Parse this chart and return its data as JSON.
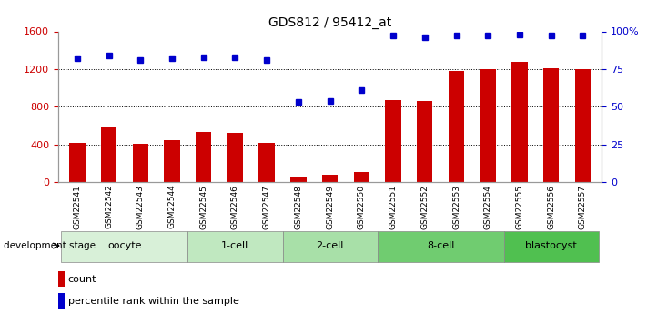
{
  "title": "GDS812 / 95412_at",
  "samples": [
    "GSM22541",
    "GSM22542",
    "GSM22543",
    "GSM22544",
    "GSM22545",
    "GSM22546",
    "GSM22547",
    "GSM22548",
    "GSM22549",
    "GSM22550",
    "GSM22551",
    "GSM22552",
    "GSM22553",
    "GSM22554",
    "GSM22555",
    "GSM22556",
    "GSM22557"
  ],
  "count_values": [
    420,
    590,
    410,
    450,
    530,
    520,
    420,
    60,
    80,
    110,
    870,
    860,
    1180,
    1200,
    1280,
    1210,
    1200
  ],
  "percentile_values": [
    82,
    84,
    81,
    82,
    83,
    83,
    81,
    53,
    54,
    61,
    97,
    96,
    97,
    97,
    98,
    97,
    97
  ],
  "bar_color": "#cc0000",
  "dot_color": "#0000cc",
  "ylim_left": [
    0,
    1600
  ],
  "ylim_right": [
    0,
    100
  ],
  "yticks_left": [
    0,
    400,
    800,
    1200,
    1600
  ],
  "yticks_right": [
    0,
    25,
    50,
    75,
    100
  ],
  "ytick_labels_right": [
    "0",
    "25",
    "50",
    "75",
    "100%"
  ],
  "grid_values": [
    400,
    800,
    1200
  ],
  "stages": [
    {
      "label": "oocyte",
      "start": 0,
      "end": 4,
      "color": "#d8f0d8"
    },
    {
      "label": "1-cell",
      "start": 4,
      "end": 7,
      "color": "#c0e8c0"
    },
    {
      "label": "2-cell",
      "start": 7,
      "end": 10,
      "color": "#a8e0a8"
    },
    {
      "label": "8-cell",
      "start": 10,
      "end": 14,
      "color": "#70cc70"
    },
    {
      "label": "blastocyst",
      "start": 14,
      "end": 17,
      "color": "#50c050"
    }
  ],
  "tick_label_color_left": "#cc0000",
  "tick_label_color_right": "#0000cc",
  "background_color": "#ffffff",
  "sample_label_bg": "#cccccc",
  "legend_count_label": "count",
  "legend_pct_label": "percentile rank within the sample",
  "dev_stage_label": "development stage",
  "bar_width": 0.5
}
